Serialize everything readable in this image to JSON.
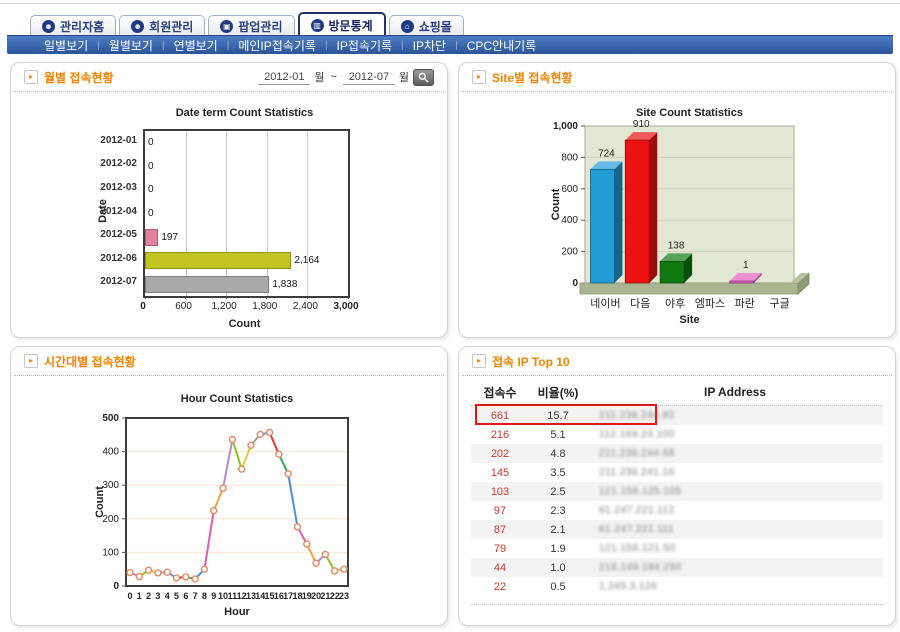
{
  "nav": {
    "tabs": [
      {
        "label": "관리자홈",
        "icon": "person-icon",
        "glyph": "☻"
      },
      {
        "label": "회원관리",
        "icon": "person-icon",
        "glyph": "☻"
      },
      {
        "label": "팝업관리",
        "icon": "popup-window-icon",
        "glyph": "▣"
      },
      {
        "label": "방문통계",
        "icon": "bar-chart-icon",
        "glyph": "▥"
      },
      {
        "label": "쇼핑몰",
        "icon": "home-icon",
        "glyph": "⌂"
      }
    ],
    "active_tab": 3,
    "subnav": [
      "일별보기",
      "월별보기",
      "연별보기",
      "메인IP접속기록",
      "IP접속기록",
      "IP차단",
      "CPC안내기록"
    ]
  },
  "panels": {
    "monthly": {
      "title": "월별 접속현황",
      "date_from": "2012-01",
      "month_label_1": "월",
      "tilde": "~",
      "date_to": "2012-07",
      "month_label_2": "월"
    },
    "site": {
      "title": "Site별 접속현황"
    },
    "hourly": {
      "title": "시간대별 접속현황"
    },
    "ip_top": {
      "title": "접속 IP Top 10",
      "headers": [
        "접속수",
        "비율(%)",
        "IP Address"
      ],
      "rows": [
        {
          "count": "661",
          "ratio": "15.7",
          "ip": "211.236.244.82",
          "highlight": true
        },
        {
          "count": "216",
          "ratio": "5.1",
          "ip": "112.169.23.100"
        },
        {
          "count": "202",
          "ratio": "4.8",
          "ip": "211.236.244.68"
        },
        {
          "count": "145",
          "ratio": "3.5",
          "ip": "211.236.241.16"
        },
        {
          "count": "103",
          "ratio": "2.5",
          "ip": "121.156.125.105"
        },
        {
          "count": "97",
          "ratio": "2.3",
          "ip": "61.247.221.112"
        },
        {
          "count": "87",
          "ratio": "2.1",
          "ip": "61.247.221.111"
        },
        {
          "count": "79",
          "ratio": "1.9",
          "ip": "121.156.121.50"
        },
        {
          "count": "44",
          "ratio": "1.0",
          "ip": "218.149.184.250"
        },
        {
          "count": "22",
          "ratio": "0.5",
          "ip": "1.245.3.126"
        }
      ]
    }
  },
  "chart_data": [
    {
      "type": "bar",
      "orientation": "horizontal",
      "title": "Date term Count Statistics",
      "categories": [
        "2012-01",
        "2012-02",
        "2012-03",
        "2012-04",
        "2012-05",
        "2012-06",
        "2012-07"
      ],
      "values": [
        0,
        0,
        0,
        0,
        197,
        2164,
        1838
      ],
      "value_labels": [
        "0",
        "0",
        "0",
        "0",
        "197",
        "2,164",
        "1,838"
      ],
      "bar_colors": [
        "#ffffff",
        "#ffffff",
        "#ffffff",
        "#ffffff",
        "#e2829f",
        "#c3c322",
        "#a9a9a9"
      ],
      "xlabel": "Count",
      "ylabel": "Date",
      "xlim": [
        0,
        3000
      ],
      "xticks": [
        0,
        600,
        1200,
        1800,
        2400,
        3000
      ],
      "xtick_labels": [
        "0",
        "600",
        "1,200",
        "1,800",
        "2,400",
        "3,000"
      ],
      "grid": "vertical"
    },
    {
      "type": "bar",
      "orientation": "vertical",
      "style": "3d",
      "title": "Site Count Statistics",
      "categories": [
        "네이버",
        "다음",
        "야후",
        "엠파스",
        "파란",
        "구글"
      ],
      "values": [
        724,
        910,
        138,
        0,
        1,
        0
      ],
      "value_labels": [
        "724",
        "910",
        "138",
        "",
        "1",
        ""
      ],
      "bar_colors": [
        "#229cd6",
        "#ee1111",
        "#107a12",
        "#999999",
        "#e75fc1",
        "#999999"
      ],
      "xlabel": "Site",
      "ylabel": "Count",
      "ylim": [
        0,
        1000
      ],
      "yticks": [
        0,
        200,
        400,
        600,
        800,
        1000
      ],
      "ytick_labels": [
        "0",
        "200",
        "400",
        "600",
        "800",
        "1,000"
      ],
      "plot_bg": "#e2e7d4",
      "grid": "horizontal"
    },
    {
      "type": "line",
      "title": "Hour Count Statistics",
      "x": [
        0,
        1,
        2,
        3,
        4,
        5,
        6,
        7,
        8,
        9,
        10,
        11,
        12,
        13,
        14,
        15,
        16,
        17,
        18,
        19,
        20,
        21,
        22,
        23
      ],
      "values": [
        40,
        28,
        47,
        39,
        41,
        24,
        27,
        21,
        50,
        224,
        291,
        436,
        348,
        419,
        451,
        457,
        392,
        334,
        176,
        125,
        68,
        94,
        45,
        50
      ],
      "xlabel": "Hour",
      "ylabel": "Count",
      "ylim": [
        0,
        500
      ],
      "yticks": [
        0,
        100,
        200,
        300,
        400,
        500
      ],
      "grid": "horizontal",
      "gridline_color": "#fbe3d2",
      "segment_palette": [
        "#b489d6",
        "#8fc31f",
        "#e6c63a",
        "#9e9e9e",
        "#5b9bd5",
        "#e03a3a",
        "#3aa655",
        "#4a90d9",
        "#e35ab4",
        "#f0a03a"
      ],
      "marker": {
        "fill": "#ffffff",
        "stroke": "#e3885f"
      }
    }
  ]
}
